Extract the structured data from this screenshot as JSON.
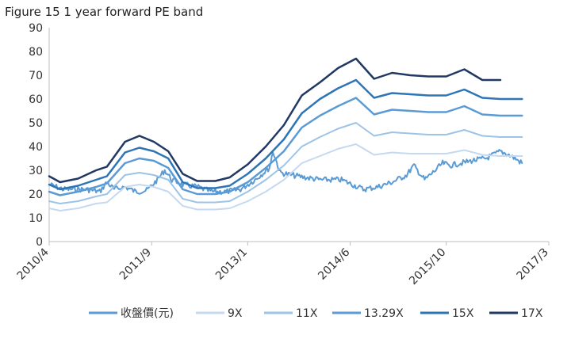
{
  "chart_data": {
    "type": "line",
    "title": "Figure 15 1 year forward PE band",
    "xlabel": "",
    "ylabel": "",
    "ylim": [
      0,
      90
    ],
    "yticks": [
      "0",
      "10",
      "20",
      "30",
      "40",
      "50",
      "60",
      "70",
      "80",
      "90"
    ],
    "x_range": [
      2010.25,
      2017.17
    ],
    "xticks": [
      {
        "label": "2010/4",
        "x": 2010.25
      },
      {
        "label": "2011/9",
        "x": 2011.67
      },
      {
        "label": "2013/1",
        "x": 2013.0
      },
      {
        "label": "2014/6",
        "x": 2014.42
      },
      {
        "label": "2015/10",
        "x": 2015.75
      },
      {
        "label": "2017/3",
        "x": 2017.17
      }
    ],
    "grid": false,
    "legend_position": "bottom",
    "series": [
      {
        "name": "收盤價(元)",
        "color": "#5b9bd5",
        "width": 2,
        "style": "noisy",
        "points": [
          [
            2010.25,
            24
          ],
          [
            2010.45,
            22
          ],
          [
            2010.75,
            22
          ],
          [
            2010.95,
            21
          ],
          [
            2011.05,
            25
          ],
          [
            2011.15,
            22
          ],
          [
            2011.3,
            23
          ],
          [
            2011.45,
            21
          ],
          [
            2011.6,
            21.5
          ],
          [
            2011.75,
            26
          ],
          [
            2011.85,
            30
          ],
          [
            2011.95,
            26
          ],
          [
            2012.1,
            24
          ],
          [
            2012.3,
            23
          ],
          [
            2012.5,
            21
          ],
          [
            2012.7,
            21
          ],
          [
            2012.9,
            22
          ],
          [
            2013.1,
            26
          ],
          [
            2013.3,
            31
          ],
          [
            2013.35,
            38
          ],
          [
            2013.45,
            29
          ],
          [
            2013.6,
            28
          ],
          [
            2013.8,
            27
          ],
          [
            2014.0,
            26
          ],
          [
            2014.3,
            26
          ],
          [
            2014.45,
            24
          ],
          [
            2014.6,
            22
          ],
          [
            2014.8,
            23
          ],
          [
            2015.0,
            25
          ],
          [
            2015.2,
            28
          ],
          [
            2015.3,
            32
          ],
          [
            2015.45,
            26
          ],
          [
            2015.6,
            30
          ],
          [
            2015.7,
            33
          ],
          [
            2015.8,
            32
          ],
          [
            2015.95,
            33
          ],
          [
            2016.1,
            34
          ],
          [
            2016.3,
            35
          ],
          [
            2016.5,
            38
          ],
          [
            2016.65,
            36
          ],
          [
            2016.8,
            33
          ]
        ]
      },
      {
        "name": "9X",
        "color": "#c5d9f1",
        "width": 2,
        "points": [
          [
            2010.25,
            14
          ],
          [
            2010.4,
            13
          ],
          [
            2010.65,
            14
          ],
          [
            2010.9,
            16
          ],
          [
            2011.05,
            16.5
          ],
          [
            2011.3,
            23
          ],
          [
            2011.5,
            24
          ],
          [
            2011.7,
            23
          ],
          [
            2011.9,
            21
          ],
          [
            2012.1,
            15
          ],
          [
            2012.3,
            13.5
          ],
          [
            2012.55,
            13.5
          ],
          [
            2012.75,
            14
          ],
          [
            2013.0,
            17
          ],
          [
            2013.25,
            21
          ],
          [
            2013.5,
            26
          ],
          [
            2013.75,
            33
          ],
          [
            2014.0,
            36
          ],
          [
            2014.25,
            39
          ],
          [
            2014.5,
            41
          ],
          [
            2014.75,
            36.5
          ],
          [
            2015.0,
            37.5
          ],
          [
            2015.25,
            37
          ],
          [
            2015.5,
            37
          ],
          [
            2015.75,
            37
          ],
          [
            2016.0,
            38.5
          ],
          [
            2016.25,
            36.5
          ],
          [
            2016.5,
            36
          ],
          [
            2016.8,
            36
          ]
        ]
      },
      {
        "name": "11X",
        "color": "#9dc3e6",
        "width": 2,
        "points": [
          [
            2010.25,
            17
          ],
          [
            2010.4,
            16
          ],
          [
            2010.65,
            17
          ],
          [
            2010.9,
            19
          ],
          [
            2011.05,
            20
          ],
          [
            2011.3,
            28
          ],
          [
            2011.5,
            29
          ],
          [
            2011.7,
            28
          ],
          [
            2011.9,
            26
          ],
          [
            2012.1,
            18
          ],
          [
            2012.3,
            16.5
          ],
          [
            2012.55,
            16.5
          ],
          [
            2012.75,
            17
          ],
          [
            2013.0,
            21
          ],
          [
            2013.25,
            26
          ],
          [
            2013.5,
            32
          ],
          [
            2013.75,
            40
          ],
          [
            2014.0,
            44
          ],
          [
            2014.25,
            47.5
          ],
          [
            2014.5,
            50
          ],
          [
            2014.75,
            44.5
          ],
          [
            2015.0,
            46
          ],
          [
            2015.25,
            45.5
          ],
          [
            2015.5,
            45
          ],
          [
            2015.75,
            45
          ],
          [
            2016.0,
            47
          ],
          [
            2016.25,
            44.5
          ],
          [
            2016.5,
            44
          ],
          [
            2016.8,
            44
          ]
        ]
      },
      {
        "name": "13.29X",
        "color": "#5b9bd5",
        "width": 2.5,
        "points": [
          [
            2010.25,
            21
          ],
          [
            2010.4,
            19.5
          ],
          [
            2010.65,
            21
          ],
          [
            2010.9,
            23
          ],
          [
            2011.05,
            24.5
          ],
          [
            2011.3,
            33
          ],
          [
            2011.5,
            35
          ],
          [
            2011.7,
            34
          ],
          [
            2011.9,
            31
          ],
          [
            2012.1,
            22
          ],
          [
            2012.3,
            20
          ],
          [
            2012.55,
            20
          ],
          [
            2012.75,
            21
          ],
          [
            2013.0,
            25
          ],
          [
            2013.25,
            31
          ],
          [
            2013.5,
            38
          ],
          [
            2013.75,
            48
          ],
          [
            2014.0,
            53
          ],
          [
            2014.25,
            57
          ],
          [
            2014.5,
            60.5
          ],
          [
            2014.75,
            53.5
          ],
          [
            2015.0,
            55.5
          ],
          [
            2015.25,
            55
          ],
          [
            2015.5,
            54.5
          ],
          [
            2015.75,
            54.5
          ],
          [
            2016.0,
            57
          ],
          [
            2016.25,
            53.5
          ],
          [
            2016.5,
            53
          ],
          [
            2016.8,
            53
          ]
        ]
      },
      {
        "name": "15X",
        "color": "#2e75b6",
        "width": 2.5,
        "points": [
          [
            2010.25,
            24
          ],
          [
            2010.4,
            22
          ],
          [
            2010.65,
            23.5
          ],
          [
            2010.9,
            26
          ],
          [
            2011.05,
            27.5
          ],
          [
            2011.3,
            37.5
          ],
          [
            2011.5,
            39.5
          ],
          [
            2011.7,
            38
          ],
          [
            2011.9,
            35
          ],
          [
            2012.1,
            25
          ],
          [
            2012.3,
            22.5
          ],
          [
            2012.55,
            22.5
          ],
          [
            2012.75,
            23.5
          ],
          [
            2013.0,
            28.5
          ],
          [
            2013.25,
            35
          ],
          [
            2013.5,
            43
          ],
          [
            2013.75,
            54
          ],
          [
            2014.0,
            60
          ],
          [
            2014.25,
            64.5
          ],
          [
            2014.5,
            68
          ],
          [
            2014.75,
            60.5
          ],
          [
            2015.0,
            62.5
          ],
          [
            2015.25,
            62
          ],
          [
            2015.5,
            61.5
          ],
          [
            2015.75,
            61.5
          ],
          [
            2016.0,
            64
          ],
          [
            2016.25,
            60.5
          ],
          [
            2016.5,
            60
          ],
          [
            2016.8,
            60
          ]
        ]
      },
      {
        "name": "17X",
        "color": "#203864",
        "width": 2.5,
        "points": [
          [
            2010.25,
            27.5
          ],
          [
            2010.4,
            25
          ],
          [
            2010.65,
            26.5
          ],
          [
            2010.9,
            30
          ],
          [
            2011.05,
            31.5
          ],
          [
            2011.3,
            42
          ],
          [
            2011.5,
            44.5
          ],
          [
            2011.7,
            42
          ],
          [
            2011.9,
            38
          ],
          [
            2012.1,
            28.5
          ],
          [
            2012.3,
            25.5
          ],
          [
            2012.55,
            25.5
          ],
          [
            2012.75,
            27
          ],
          [
            2013.0,
            32.5
          ],
          [
            2013.25,
            40
          ],
          [
            2013.5,
            49
          ],
          [
            2013.75,
            61.5
          ],
          [
            2014.0,
            67
          ],
          [
            2014.25,
            73
          ],
          [
            2014.5,
            77
          ],
          [
            2014.75,
            68.5
          ],
          [
            2015.0,
            71
          ],
          [
            2015.25,
            70
          ],
          [
            2015.5,
            69.5
          ],
          [
            2015.75,
            69.5
          ],
          [
            2016.0,
            72.5
          ],
          [
            2016.25,
            68
          ],
          [
            2016.5,
            68
          ]
        ]
      }
    ]
  }
}
